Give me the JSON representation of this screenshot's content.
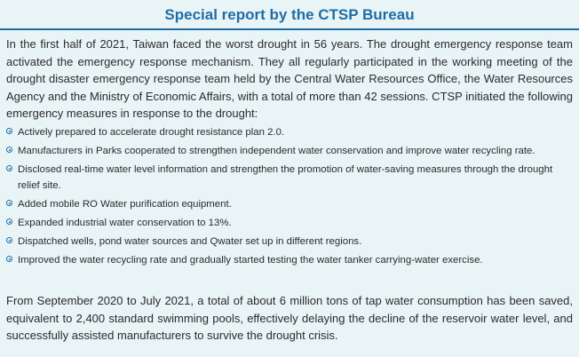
{
  "title": "Special report by the CTSP Bureau",
  "intro": "In the first half of 2021, Taiwan faced the worst drought in 56 years. The drought emergency response team activated the emergency response mechanism. They all regularly participated in the working meeting of the drought disaster emergency response team held by the Central Water Resources Office, the Water Resources Agency and the Ministry of Economic Affairs, with a total of more than 42 sessions. CTSP initiated the following emergency measures in response to the drought:",
  "measures": [
    "Actively prepared to accelerate drought resistance plan 2.0.",
    "Manufacturers in Parks cooperated to strengthen independent water conservation and improve water recycling rate.",
    "Disclosed real-time water level information and strengthen the promotion of water-saving measures through the drought relief site.",
    "Added mobile RO Water purification equipment.",
    "Expanded industrial water conservation to 13%.",
    "Dispatched wells, pond water sources and Qwater set up in different regions.",
    "Improved the water recycling rate and gradually started testing the water tanker carrying-water exercise."
  ],
  "closing": "From September 2020 to July 2021, a total of about 6 million tons of tap water consumption has been saved, equivalent to 2,400 standard swimming pools, effectively delaying the decline of the reservoir water level, and successfully assisted manufacturers to survive the drought crisis.",
  "colors": {
    "accent": "#1f6da6",
    "background": "#e9f4f6",
    "text": "#2b2b2b"
  }
}
